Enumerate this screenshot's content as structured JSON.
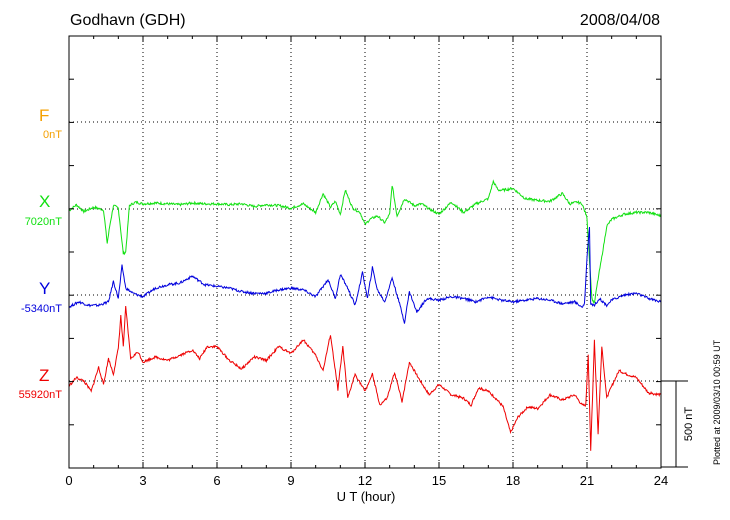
{
  "header": {
    "station": "Godhavn (GDH)",
    "date": "2008/04/08"
  },
  "plotted_note": "Plotted at 2009/03/10 00:59 UT",
  "components": [
    {
      "name": "F",
      "baseline": "0nT",
      "color": "#f5a000"
    },
    {
      "name": "X",
      "baseline": "7020nT",
      "color": "#11e011"
    },
    {
      "name": "Y",
      "baseline": "-5340nT",
      "color": "#0000dd"
    },
    {
      "name": "Z",
      "baseline": "55920nT",
      "color": "#ee0000"
    }
  ],
  "scale_label": "500 nT",
  "chart_data": {
    "type": "line",
    "title": "Godhavn (GDH)",
    "xlabel": "U T (hour)",
    "ylabel": "",
    "xlim": [
      0,
      24
    ],
    "x_ticks": [
      0,
      3,
      6,
      9,
      12,
      15,
      18,
      21,
      24
    ],
    "ylim_nT": [
      -1000,
      1000
    ],
    "grid": true,
    "series": [
      {
        "name": "X",
        "color": "#11e011",
        "baseline": "7020nT",
        "x": [
          0,
          0.3,
          0.6,
          1.0,
          1.4,
          1.55,
          1.65,
          1.8,
          2.0,
          2.2,
          2.3,
          2.45,
          2.7,
          3.0,
          3.5,
          4.0,
          4.5,
          5.0,
          5.5,
          6.0,
          6.5,
          7.0,
          7.5,
          8.0,
          8.5,
          9.0,
          9.5,
          10.0,
          10.3,
          10.6,
          10.8,
          11.0,
          11.2,
          11.5,
          11.8,
          12.0,
          12.2,
          12.5,
          12.8,
          13.0,
          13.1,
          13.3,
          13.6,
          14.0,
          14.3,
          14.6,
          15.0,
          15.5,
          16.0,
          16.5,
          17.0,
          17.2,
          17.4,
          17.6,
          18.0,
          18.5,
          19.0,
          19.5,
          20.0,
          20.3,
          20.6,
          20.8,
          21.0,
          21.1,
          21.2,
          21.3,
          21.4,
          21.6,
          21.8,
          22.0,
          22.5,
          23.0,
          23.5,
          24.0
        ],
        "y": [
          -10,
          25,
          -15,
          10,
          -5,
          -200,
          -100,
          20,
          5,
          -260,
          -250,
          20,
          40,
          30,
          35,
          30,
          25,
          35,
          30,
          30,
          25,
          30,
          15,
          25,
          20,
          5,
          30,
          -20,
          90,
          10,
          45,
          -30,
          110,
          5,
          -20,
          -90,
          -60,
          -40,
          -80,
          -30,
          140,
          -40,
          60,
          20,
          30,
          0,
          -30,
          40,
          -20,
          30,
          60,
          160,
          110,
          110,
          120,
          60,
          50,
          45,
          90,
          30,
          40,
          30,
          -50,
          -300,
          -520,
          -550,
          -450,
          -280,
          -100,
          -60,
          -30,
          -20,
          -20,
          -40
        ]
      },
      {
        "name": "Y",
        "color": "#0000dd",
        "baseline": "-5340nT",
        "x": [
          0,
          0.4,
          0.8,
          1.2,
          1.6,
          1.8,
          2.0,
          2.15,
          2.3,
          2.6,
          3.0,
          3.5,
          4.0,
          4.5,
          5.0,
          5.5,
          6.0,
          6.5,
          7.0,
          7.5,
          8.0,
          8.5,
          9.0,
          9.5,
          10.0,
          10.5,
          10.8,
          11.0,
          11.3,
          11.6,
          11.9,
          12.1,
          12.3,
          12.5,
          12.8,
          13.1,
          13.4,
          13.6,
          13.8,
          14.1,
          14.5,
          15.0,
          15.5,
          16.0,
          16.5,
          17.0,
          17.5,
          18.0,
          18.5,
          19.0,
          19.5,
          20.0,
          20.5,
          20.8,
          20.9,
          21.0,
          21.1,
          21.15,
          21.3,
          21.5,
          21.8,
          22.0,
          22.5,
          23.0,
          23.5,
          24.0
        ],
        "y": [
          -70,
          -40,
          -60,
          -60,
          -40,
          80,
          -20,
          170,
          40,
          10,
          -10,
          40,
          60,
          70,
          110,
          60,
          50,
          40,
          20,
          10,
          10,
          30,
          40,
          30,
          -10,
          90,
          -20,
          120,
          40,
          -60,
          130,
          -20,
          160,
          30,
          -40,
          100,
          -50,
          -160,
          20,
          -100,
          -20,
          -30,
          -10,
          -20,
          -40,
          -10,
          -30,
          -40,
          -30,
          -20,
          -30,
          -50,
          -40,
          -70,
          -50,
          220,
          400,
          -50,
          -60,
          -20,
          -60,
          -30,
          0,
          10,
          -20,
          -40
        ]
      },
      {
        "name": "Z",
        "color": "#ee0000",
        "baseline": "55920nT",
        "x": [
          0,
          0.3,
          0.6,
          0.9,
          1.2,
          1.4,
          1.6,
          1.8,
          2.0,
          2.1,
          2.2,
          2.3,
          2.5,
          2.8,
          3.0,
          3.5,
          4.0,
          4.5,
          5.0,
          5.3,
          5.6,
          6.0,
          6.5,
          7.0,
          7.5,
          8.0,
          8.5,
          9.0,
          9.5,
          10.0,
          10.3,
          10.6,
          10.9,
          11.1,
          11.3,
          11.6,
          12.0,
          12.3,
          12.6,
          12.9,
          13.2,
          13.5,
          13.8,
          14.2,
          14.6,
          15.0,
          15.5,
          16.0,
          16.3,
          16.6,
          17.0,
          17.3,
          17.6,
          17.9,
          18.2,
          18.6,
          19.0,
          19.5,
          20.0,
          20.5,
          20.8,
          20.95,
          21.05,
          21.15,
          21.3,
          21.45,
          21.6,
          21.8,
          22.0,
          22.3,
          22.6,
          23.0,
          23.5,
          24.0
        ],
        "y": [
          -30,
          20,
          0,
          -60,
          80,
          -20,
          130,
          40,
          190,
          380,
          200,
          430,
          130,
          170,
          110,
          140,
          120,
          150,
          180,
          130,
          200,
          200,
          120,
          70,
          140,
          120,
          200,
          160,
          240,
          150,
          60,
          270,
          -50,
          200,
          -100,
          40,
          -60,
          40,
          -140,
          -100,
          50,
          -120,
          110,
          10,
          -80,
          -20,
          -80,
          -100,
          -140,
          -40,
          -60,
          -100,
          -150,
          -300,
          -210,
          -150,
          -160,
          -80,
          -110,
          -80,
          -140,
          -140,
          160,
          -410,
          240,
          -310,
          200,
          -100,
          -30,
          60,
          40,
          20,
          -70,
          -80
        ]
      }
    ]
  }
}
